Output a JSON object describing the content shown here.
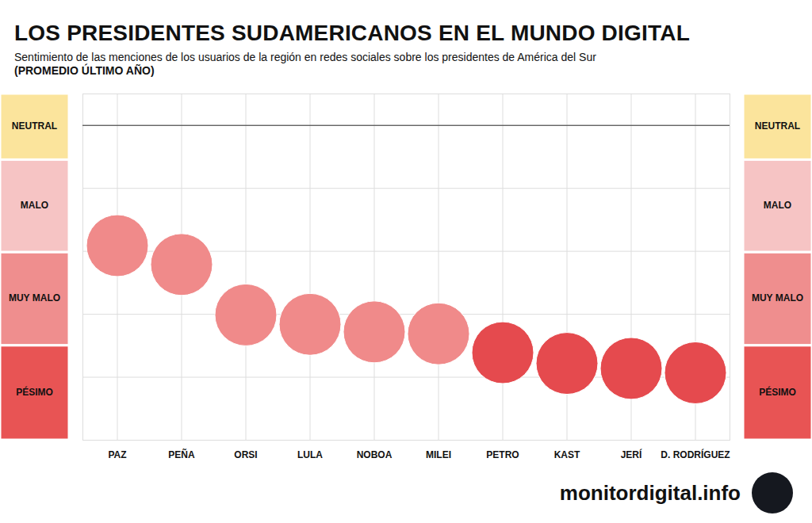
{
  "chart_data": {
    "type": "dot",
    "title": "LOS PRESIDENTES SUDAMERICANOS EN EL MUNDO DIGITAL",
    "subtitle": "Sentimiento de las menciones de los usuarios de la región en redes sociales sobre los presidentes de América del Sur",
    "subtitle_note": "(PROMEDIO ÚLTIMO AÑO)",
    "source": "monitordigital.info",
    "categories": [
      "PAZ",
      "PEÑA",
      "ORSI",
      "LULA",
      "NOBOA",
      "MILEI",
      "PETRO",
      "KAST",
      "JERÍ",
      "D. RODRÍGUEZ"
    ],
    "values": [
      -1.91,
      -2.21,
      -3.01,
      -3.16,
      -3.28,
      -3.31,
      -3.61,
      -3.78,
      -3.86,
      -3.93
    ],
    "colors": [
      "#f08a8a",
      "#f08a8a",
      "#f08a8a",
      "#f08a8a",
      "#f08a8a",
      "#f08a8a",
      "#e54a4e",
      "#e54a4e",
      "#e54a4e",
      "#e54a4e"
    ],
    "ylim": [
      -5,
      0.5
    ],
    "yticks": [
      -4,
      -3,
      -2,
      -1,
      0
    ],
    "grid": true,
    "tick_labels": "x",
    "neutral_line": 0,
    "bands": [
      {
        "label": "NEUTRAL",
        "from": 0.5,
        "to": -0.55,
        "color": "#fbe49c"
      },
      {
        "label": "MALO",
        "from": -0.55,
        "to": -2.02,
        "color": "#f6c4c4"
      },
      {
        "label": "MUY MALO",
        "from": -2.02,
        "to": -3.5,
        "color": "#ef8e8e"
      },
      {
        "label": "PÉSIMO",
        "from": -3.5,
        "to": -5,
        "color": "#e85454"
      }
    ]
  }
}
